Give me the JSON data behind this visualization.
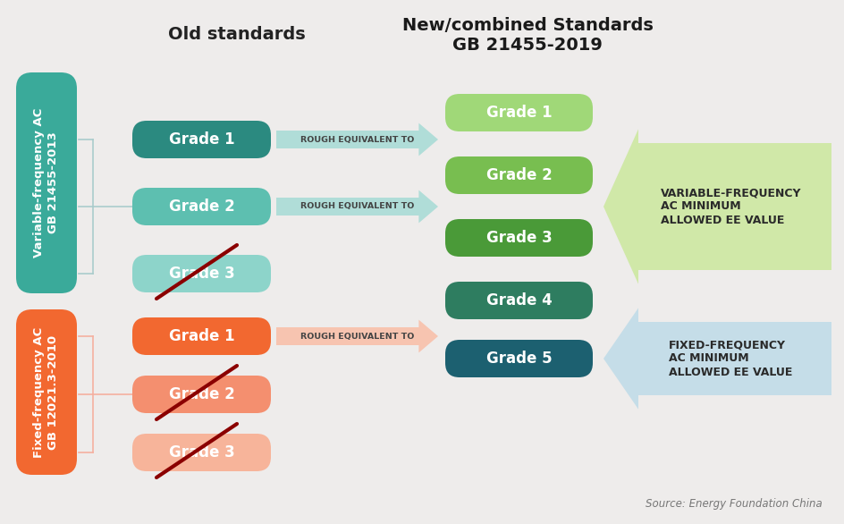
{
  "bg_color": "#eeeceb",
  "title_old": "Old standards",
  "title_new_line1": "New/combined Standards",
  "title_new_line2": "GB 21455-2019",
  "source_text": "Source: Energy Foundation China",
  "var_box_color": "#3aaa9a",
  "var_box_text": "Variable-frequency AC\nGB 21455-2013",
  "fix_box_color": "#f26830",
  "fix_box_text": "Fixed-frequency AC\nGB 12021.3-2010",
  "var_grades_colors": [
    "#2b8a80",
    "#5dbfb0",
    "#8dd4ca"
  ],
  "var_grades_labels": [
    "Grade 1",
    "Grade 2",
    "Grade 3"
  ],
  "fix_grades_colors": [
    "#f26830",
    "#f48f6f",
    "#f7b49a"
  ],
  "fix_grades_labels": [
    "Grade 1",
    "Grade 2",
    "Grade 3"
  ],
  "new_grades_colors": [
    "#a0d878",
    "#78be50",
    "#4a9a38",
    "#2e7d60",
    "#1c6070"
  ],
  "new_grades_labels": [
    "Grade 1",
    "Grade 2",
    "Grade 3",
    "Grade 4",
    "Grade 5"
  ],
  "arrow_var_color": "#b0ddd8",
  "arrow_fix_color": "#f7c4b0",
  "label_var": "VARIABLE-FREQUENCY\nAC MINIMUM\nALLOWED EE VALUE",
  "label_fix": "FIXED-FREQUENCY\nAC MINIMUM\nALLOWED EE VALUE",
  "label_var_bg": "#d0e8a8",
  "label_fix_bg": "#c5dde8",
  "rough_text": "ROUGH EQUIVALENT TO",
  "cross_color": "#8b0000",
  "bracket_color": "#aacccc",
  "bracket_fix_color": "#f5b0a0"
}
